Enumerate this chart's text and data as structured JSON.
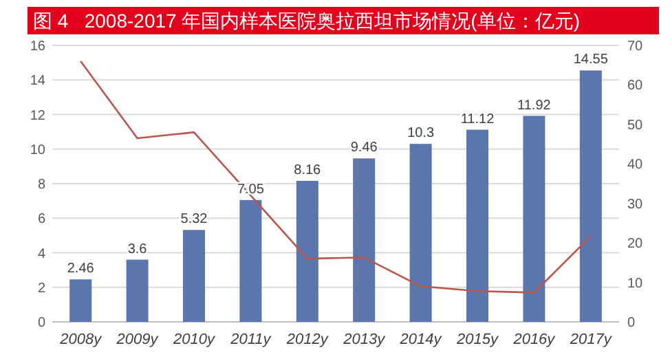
{
  "chart_data": {
    "type": "bar",
    "title": "图 4   2008-2017 年国内样本医院奥拉西坦市场情况(单位：亿元)",
    "categories": [
      "2008y",
      "2009y",
      "2010y",
      "2011y",
      "2012y",
      "2013y",
      "2014y",
      "2015y",
      "2016y",
      "2017y"
    ],
    "series": [
      {
        "color": "#5a76ad",
        "values": [
          2.46,
          3.6,
          5.32,
          7.05,
          8.16,
          9.46,
          10.3,
          11.12,
          11.92,
          14.55
        ],
        "value_labels": [
          "2.46",
          "3.6",
          "5.32",
          "7.05",
          "8.16",
          "9.46",
          "10.3",
          "11.12",
          "11.92",
          "14.55"
        ]
      },
      {
        "type": "line",
        "axis": "y2",
        "color": "#b9554f",
        "values": [
          66,
          46.5,
          48,
          32,
          16,
          16.3,
          9,
          7.8,
          7.4,
          21.7
        ]
      }
    ],
    "grid": "y",
    "ylim": [
      0,
      16
    ],
    "yticks": [
      0,
      2,
      4,
      6,
      8,
      10,
      12,
      14,
      16
    ],
    "y2lim": [
      0,
      70
    ],
    "y2ticks": [
      0,
      10,
      20,
      30,
      40,
      50,
      60,
      70
    ]
  }
}
